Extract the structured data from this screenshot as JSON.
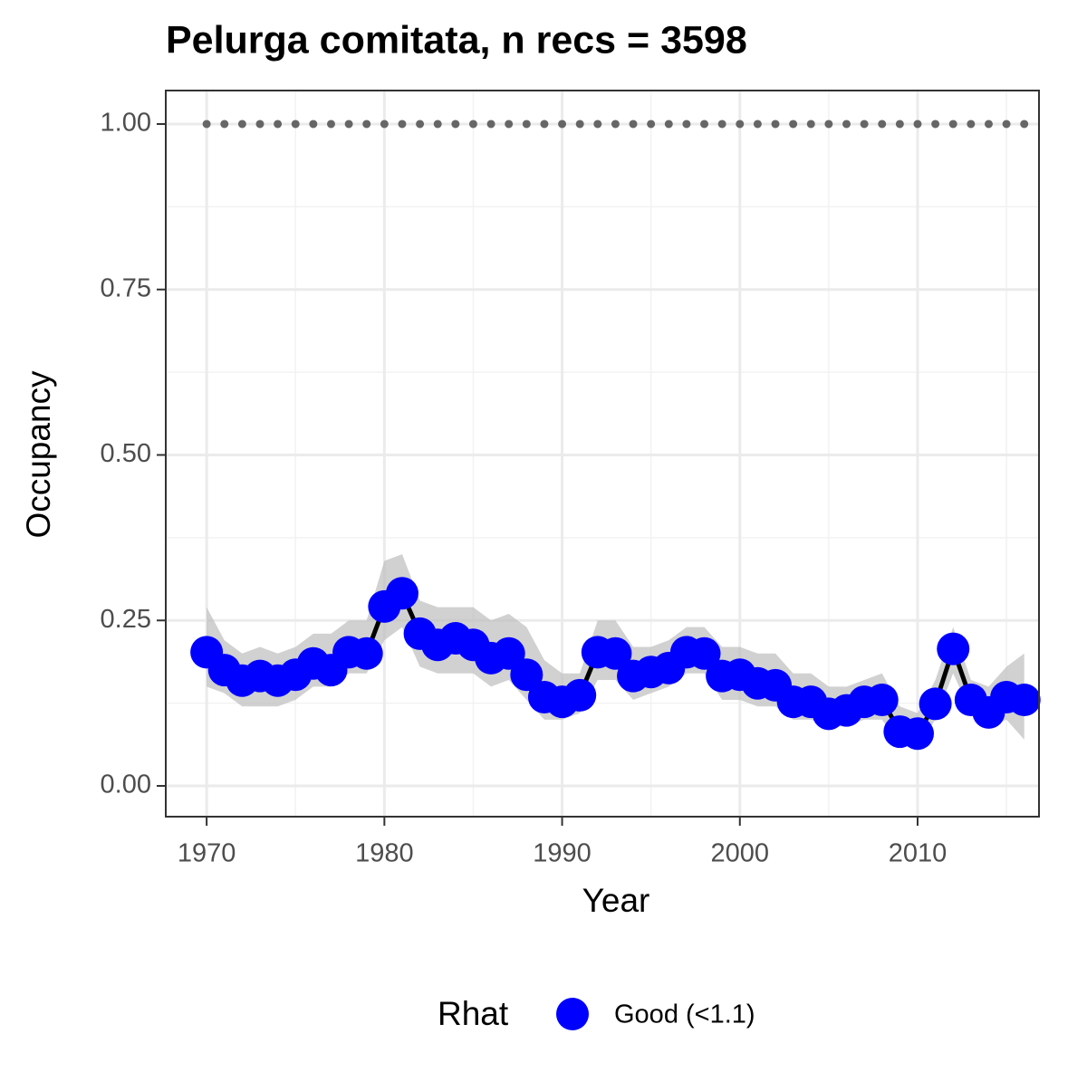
{
  "chart_data": {
    "type": "line",
    "title": "Pelurga comitata, n recs = 3598",
    "x_label": "Year",
    "y_label": "Occupancy",
    "legend_title": "Rhat",
    "x": [
      1970,
      1971,
      1972,
      1973,
      1974,
      1975,
      1976,
      1977,
      1978,
      1979,
      1980,
      1981,
      1982,
      1983,
      1984,
      1985,
      1986,
      1987,
      1988,
      1989,
      1990,
      1991,
      1992,
      1993,
      1994,
      1995,
      1996,
      1997,
      1998,
      1999,
      2000,
      2001,
      2002,
      2003,
      2004,
      2005,
      2006,
      2007,
      2008,
      2009,
      2010,
      2011,
      2012,
      2013,
      2014,
      2015,
      2016
    ],
    "series": [
      {
        "name": "Good (<1.1)",
        "color": "#0000ff",
        "line_color": "#000000",
        "values": [
          0.202,
          0.175,
          0.159,
          0.166,
          0.159,
          0.168,
          0.185,
          0.175,
          0.202,
          0.2,
          0.271,
          0.291,
          0.23,
          0.213,
          0.223,
          0.213,
          0.193,
          0.2,
          0.168,
          0.134,
          0.127,
          0.137,
          0.202,
          0.2,
          0.166,
          0.172,
          0.178,
          0.202,
          0.2,
          0.166,
          0.168,
          0.155,
          0.152,
          0.127,
          0.127,
          0.109,
          0.114,
          0.127,
          0.13,
          0.082,
          0.079,
          0.124,
          0.207,
          0.13,
          0.111,
          0.134,
          0.13
        ],
        "upper": [
          0.27,
          0.22,
          0.2,
          0.21,
          0.2,
          0.21,
          0.23,
          0.23,
          0.25,
          0.25,
          0.34,
          0.35,
          0.28,
          0.27,
          0.27,
          0.27,
          0.25,
          0.26,
          0.24,
          0.19,
          0.17,
          0.17,
          0.25,
          0.25,
          0.21,
          0.21,
          0.22,
          0.24,
          0.24,
          0.21,
          0.21,
          0.2,
          0.2,
          0.17,
          0.17,
          0.15,
          0.15,
          0.16,
          0.17,
          0.12,
          0.11,
          0.16,
          0.24,
          0.16,
          0.15,
          0.18,
          0.2
        ],
        "lower": [
          0.15,
          0.14,
          0.12,
          0.12,
          0.12,
          0.13,
          0.15,
          0.15,
          0.17,
          0.17,
          0.22,
          0.24,
          0.18,
          0.17,
          0.17,
          0.17,
          0.15,
          0.16,
          0.13,
          0.1,
          0.1,
          0.11,
          0.16,
          0.16,
          0.13,
          0.14,
          0.15,
          0.17,
          0.17,
          0.13,
          0.13,
          0.12,
          0.12,
          0.1,
          0.1,
          0.09,
          0.09,
          0.1,
          0.1,
          0.06,
          0.06,
          0.1,
          0.17,
          0.11,
          0.09,
          0.1,
          0.07
        ]
      }
    ],
    "dotted_line": {
      "color": "#666666",
      "values": [
        1,
        1,
        1,
        1,
        1,
        1,
        1,
        1,
        1,
        1,
        1,
        1,
        1,
        1,
        1,
        1,
        1,
        1,
        1,
        1,
        1,
        1,
        1,
        1,
        1,
        1,
        1,
        1,
        1,
        1,
        1,
        1,
        1,
        1,
        1,
        1,
        1,
        1,
        1,
        1,
        1,
        1,
        1,
        1,
        1,
        1,
        1
      ]
    },
    "ribbon_color": "#bebebe",
    "xlim": [
      1967.7,
      2016.83
    ],
    "ylim": [
      -0.0465,
      1.0506
    ],
    "xticks": [
      1970,
      1980,
      1990,
      2000,
      2010
    ],
    "xminor": [
      1975,
      1985,
      1995,
      2005,
      2015
    ],
    "yticks": [
      {
        "value": 0,
        "label": "0.00"
      },
      {
        "value": 0.25,
        "label": "0.25"
      },
      {
        "value": 0.5,
        "label": "0.50"
      },
      {
        "value": 0.75,
        "label": "0.75"
      },
      {
        "value": 1,
        "label": "1.00"
      }
    ],
    "yminor": [
      0.125,
      0.375,
      0.625,
      0.875
    ],
    "grid": true,
    "legend_position": "bottom"
  }
}
